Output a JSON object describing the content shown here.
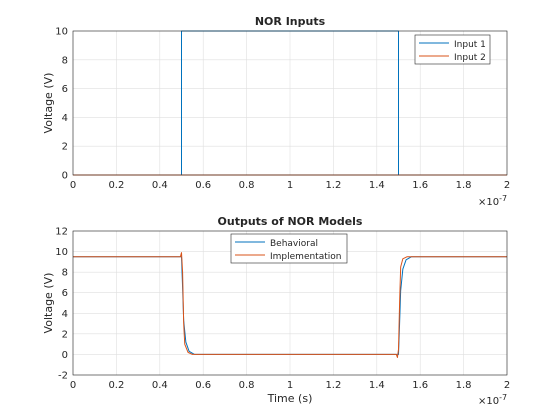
{
  "chart_data": [
    {
      "type": "line",
      "title": "NOR Inputs",
      "xlabel": "",
      "ylabel": "Voltage (V)",
      "xlim": [
        0,
        2e-07
      ],
      "ylim": [
        0,
        10
      ],
      "xticks": [
        0,
        0.2,
        0.4,
        0.6,
        0.8,
        1,
        1.2,
        1.4,
        1.6,
        1.8,
        2
      ],
      "yticks": [
        0,
        2,
        4,
        6,
        8,
        10
      ],
      "x_exponent": "×10",
      "x_exponent_power": "-7",
      "grid": true,
      "legend": "top-right",
      "series": [
        {
          "name": "Input 1",
          "color": "#0072BD",
          "x": [
            0,
            5e-08,
            5e-08,
            1.5e-07,
            1.5e-07,
            2e-07
          ],
          "y": [
            0,
            0,
            10,
            10,
            0,
            0
          ]
        },
        {
          "name": "Input 2",
          "color": "#D95319",
          "x": [
            0,
            2e-07
          ],
          "y": [
            0,
            0
          ]
        }
      ]
    },
    {
      "type": "line",
      "title": "Outputs of NOR Models",
      "xlabel": "Time (s)",
      "ylabel": "Voltage (V)",
      "xlim": [
        0,
        2e-07
      ],
      "ylim": [
        -2,
        12
      ],
      "xticks": [
        0,
        0.2,
        0.4,
        0.6,
        0.8,
        1,
        1.2,
        1.4,
        1.6,
        1.8,
        2
      ],
      "yticks": [
        -2,
        0,
        2,
        4,
        6,
        8,
        10,
        12
      ],
      "x_exponent": "×10",
      "x_exponent_power": "-7",
      "grid": true,
      "legend": "top-center",
      "series": [
        {
          "name": "Behavioral",
          "color": "#0072BD",
          "x": [
            0,
            5e-08,
            5.05e-08,
            5.1e-08,
            5.2e-08,
            5.35e-08,
            5.6e-08,
            1.5e-07,
            1.505e-07,
            1.51e-07,
            1.52e-07,
            1.535e-07,
            1.56e-07,
            2e-07
          ],
          "y": [
            9.5,
            9.5,
            6.5,
            3.3,
            1.2,
            0.3,
            0,
            0,
            3.0,
            6.2,
            8.3,
            9.2,
            9.5,
            9.5
          ]
        },
        {
          "name": "Implementation",
          "color": "#D95319",
          "x": [
            0,
            4.95e-08,
            5e-08,
            5.05e-08,
            5.1e-08,
            5.15e-08,
            5.3e-08,
            5.5e-08,
            1.49e-07,
            1.495e-07,
            1.5e-07,
            1.505e-07,
            1.51e-07,
            1.52e-07,
            1.54e-07,
            2e-07
          ],
          "y": [
            9.5,
            9.5,
            9.9,
            8.0,
            3.0,
            1.0,
            0.2,
            0,
            0,
            -0.3,
            0.5,
            5.0,
            8.5,
            9.3,
            9.5,
            9.5
          ]
        }
      ]
    }
  ]
}
